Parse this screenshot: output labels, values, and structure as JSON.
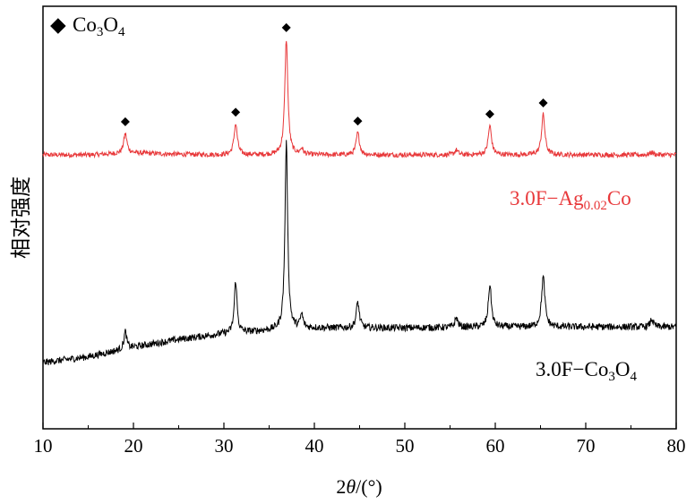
{
  "chart_data": {
    "type": "line",
    "xlabel_prefix": "2",
    "xlabel_theta": "θ",
    "xlabel_suffix": "/(°)",
    "ylabel": "相对强度",
    "xlim": [
      10,
      80
    ],
    "x_ticks": [
      "10",
      "20",
      "30",
      "40",
      "50",
      "60",
      "70",
      "80"
    ],
    "grid": false,
    "legend": {
      "marker": "◆",
      "main": "Co",
      "sub1": "3",
      "mid": "O",
      "sub2": "4",
      "position": "top-left"
    },
    "series": [
      {
        "label_main": "3.0F−Ag",
        "label_sub": "0.02",
        "label_tail": "Co",
        "color": "#e8383a",
        "baseline": [
          [
            10,
            0.5
          ],
          [
            15,
            0.5
          ],
          [
            20,
            0.57
          ],
          [
            25,
            0.52
          ],
          [
            30,
            0.5
          ],
          [
            36,
            0.5
          ],
          [
            40,
            0.5
          ],
          [
            50,
            0.5
          ],
          [
            60,
            0.5
          ],
          [
            70,
            0.5
          ],
          [
            80,
            0.5
          ]
        ],
        "peaks": [
          {
            "x": 19.1,
            "h": 0.74,
            "w": 0.22
          },
          {
            "x": 31.3,
            "h": 1.15,
            "w": 0.22
          },
          {
            "x": 36.9,
            "h": 4.3,
            "w": 0.2
          },
          {
            "x": 38.6,
            "h": 0.22,
            "w": 0.18
          },
          {
            "x": 44.8,
            "h": 0.82,
            "w": 0.22
          },
          {
            "x": 55.7,
            "h": 0.18,
            "w": 0.22
          },
          {
            "x": 59.4,
            "h": 1.08,
            "w": 0.22
          },
          {
            "x": 65.3,
            "h": 1.5,
            "w": 0.22
          },
          {
            "x": 77.3,
            "h": 0.1,
            "w": 0.22
          }
        ],
        "peak_markers": [
          19.1,
          31.3,
          36.9,
          44.8,
          59.4,
          65.3
        ]
      },
      {
        "label_main": "3.0F−Co",
        "label_sub": "3",
        "label_mid": "O",
        "label_sub2": "4",
        "color": "#000000",
        "baseline": [
          [
            10,
            0.0
          ],
          [
            15,
            0.3
          ],
          [
            20,
            0.8
          ],
          [
            25,
            1.2
          ],
          [
            30,
            1.5
          ],
          [
            36,
            1.7
          ],
          [
            40,
            1.8
          ],
          [
            50,
            1.8
          ],
          [
            60,
            1.85
          ],
          [
            70,
            1.85
          ],
          [
            80,
            1.85
          ]
        ],
        "peaks": [
          {
            "x": 19.1,
            "h": 0.9,
            "w": 0.18
          },
          {
            "x": 31.3,
            "h": 2.7,
            "w": 0.18
          },
          {
            "x": 36.9,
            "h": 9.7,
            "w": 0.18
          },
          {
            "x": 38.6,
            "h": 0.7,
            "w": 0.18
          },
          {
            "x": 44.8,
            "h": 1.35,
            "w": 0.2
          },
          {
            "x": 55.7,
            "h": 0.5,
            "w": 0.2
          },
          {
            "x": 59.4,
            "h": 2.2,
            "w": 0.2
          },
          {
            "x": 65.3,
            "h": 2.6,
            "w": 0.22
          },
          {
            "x": 77.3,
            "h": 0.4,
            "w": 0.2
          }
        ]
      }
    ]
  }
}
